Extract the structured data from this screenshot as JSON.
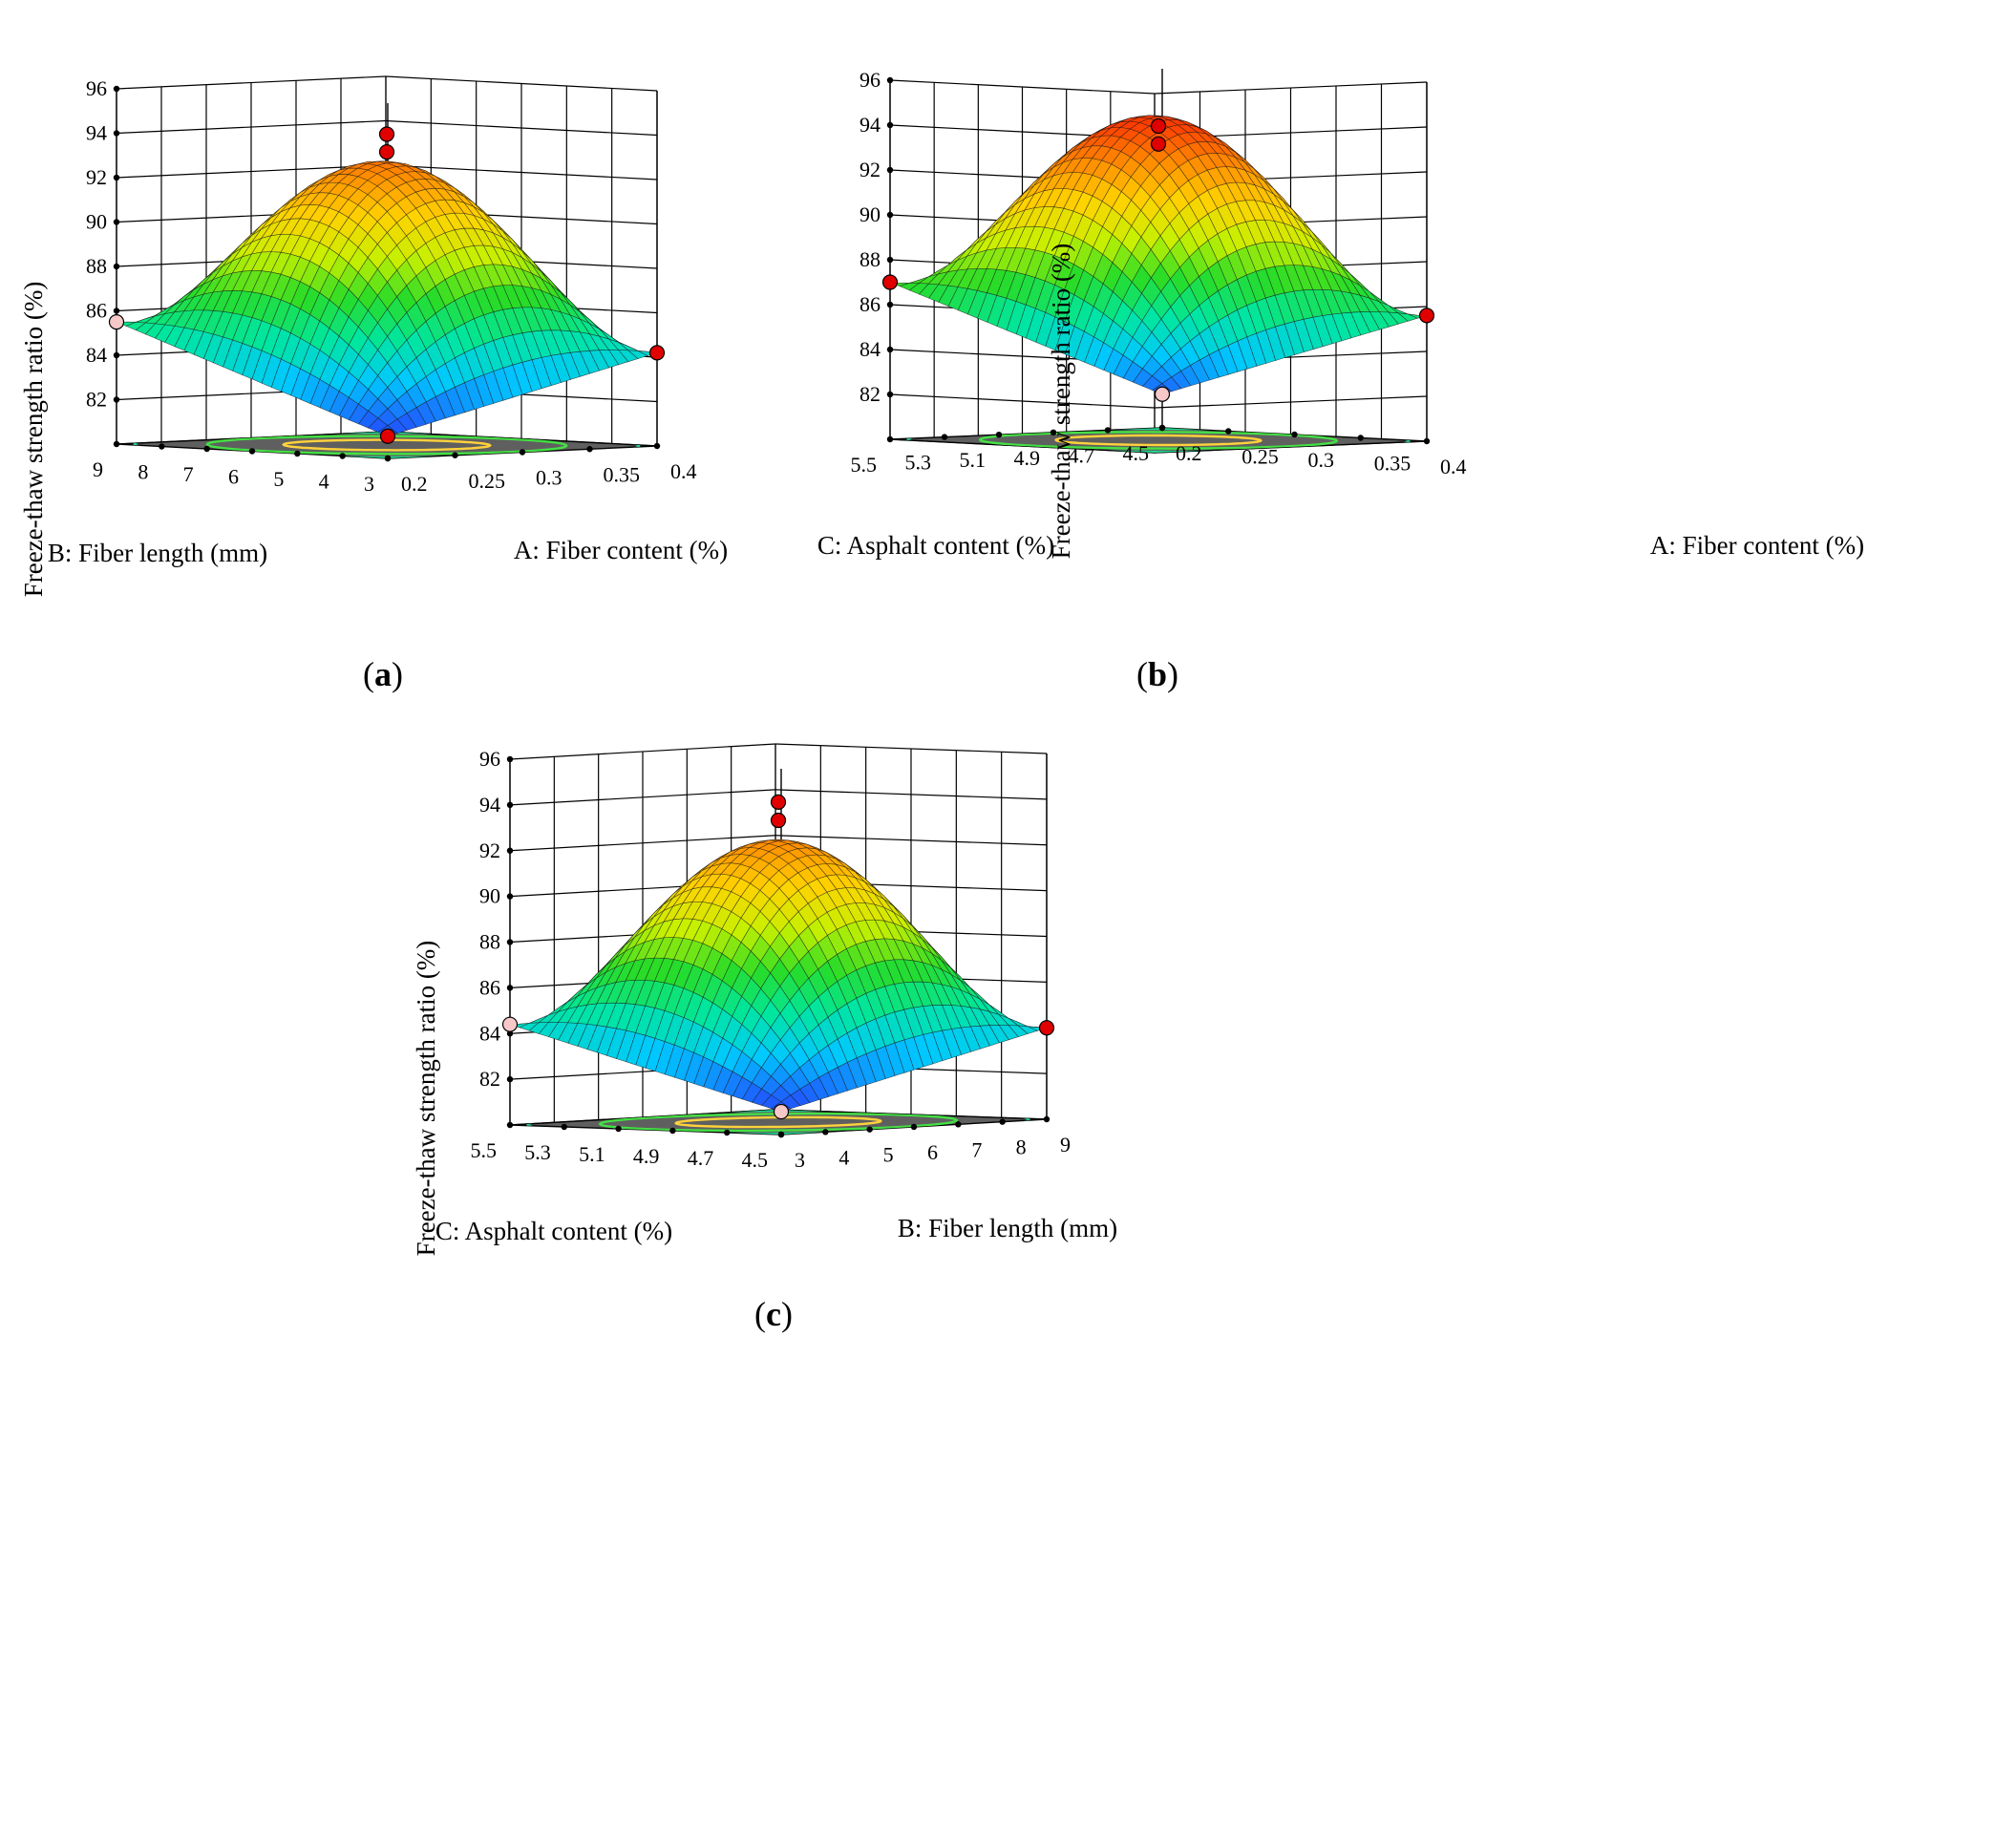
{
  "figure": {
    "panels": [
      {
        "label_open": "(",
        "label_letter": "a",
        "label_close": ")",
        "chart_data": {
          "type": "surface",
          "z_label": "Freeze-thaw strength ratio (%)",
          "z_ticks": [
            "82",
            "84",
            "86",
            "88",
            "90",
            "92",
            "94",
            "96"
          ],
          "zlim": [
            80,
            96
          ],
          "x_label": "A: Fiber content (%)",
          "x_ticks": [
            "0.2",
            "0.25",
            "0.3",
            "0.35",
            "0.4"
          ],
          "xlim": [
            0.2,
            0.4
          ],
          "y_label": "B: Fiber length (mm)",
          "y_ticks": [
            "3",
            "4",
            "5",
            "6",
            "7",
            "8",
            "9"
          ],
          "ylim": [
            3,
            9
          ],
          "surface": {
            "peak": 93.3,
            "x_min_y_min": 81.0,
            "x_max_y_min": 84.2,
            "x_min_y_max": 85.5,
            "x_max_y_max": 84.9
          },
          "design_points": [
            {
              "x": 0.3,
              "y": 6,
              "z": 94.0,
              "above_surface": true
            },
            {
              "x": 0.3,
              "y": 6,
              "z": 93.2,
              "above_surface": true
            },
            {
              "x": 0.2,
              "y": 3,
              "z": 81.0,
              "above_surface": true
            },
            {
              "x": 0.4,
              "y": 3,
              "z": 84.2,
              "above_surface": true
            },
            {
              "x": 0.2,
              "y": 9,
              "z": 85.5,
              "above_surface": false
            }
          ],
          "colormap": [
            "#1e5cff",
            "#00c8ff",
            "#00e6a0",
            "#28dc28",
            "#c8f000",
            "#ffd200",
            "#ff8c00",
            "#ff3c00"
          ]
        }
      },
      {
        "label_open": "(",
        "label_letter": "b",
        "label_close": ")",
        "chart_data": {
          "type": "surface",
          "z_label": "Freeze-thaw strength ratio (%)",
          "z_ticks": [
            "82",
            "84",
            "86",
            "88",
            "90",
            "92",
            "94",
            "96"
          ],
          "zlim": [
            80,
            96
          ],
          "x_label": "A: Fiber content (%)",
          "x_ticks": [
            "0.2",
            "0.25",
            "0.3",
            "0.35",
            "0.4"
          ],
          "xlim": [
            0.2,
            0.4
          ],
          "y_label": "C: Asphalt content (%)",
          "y_ticks": [
            "4.5",
            "4.7",
            "4.9",
            "5.1",
            "5.3",
            "5.5"
          ],
          "ylim": [
            4.5,
            5.5
          ],
          "surface": {
            "peak": 93.8,
            "x_min_y_min": 81.5,
            "x_max_y_min": 85.6,
            "x_min_y_max": 87.0,
            "x_max_y_max": 86.4
          },
          "design_points": [
            {
              "x": 0.3,
              "y": 5.0,
              "z": 94.0,
              "above_surface": true
            },
            {
              "x": 0.3,
              "y": 5.0,
              "z": 93.2,
              "above_surface": true
            },
            {
              "x": 0.2,
              "y": 4.5,
              "z": 81.5,
              "above_surface": false
            },
            {
              "x": 0.4,
              "y": 4.5,
              "z": 85.6,
              "above_surface": true
            },
            {
              "x": 0.2,
              "y": 5.5,
              "z": 87.0,
              "above_surface": true
            }
          ],
          "colormap": [
            "#1e5cff",
            "#00c8ff",
            "#00e6a0",
            "#28dc28",
            "#c8f000",
            "#ffd200",
            "#ff8c00",
            "#ff3c00"
          ]
        }
      },
      {
        "label_open": "(",
        "label_letter": "c",
        "label_close": ")",
        "chart_data": {
          "type": "surface",
          "z_label": "Freeze-thaw strength ratio (%)",
          "z_ticks": [
            "82",
            "84",
            "86",
            "88",
            "90",
            "92",
            "94",
            "96"
          ],
          "zlim": [
            80,
            96
          ],
          "x_label": "B: Fiber length (mm)",
          "x_ticks": [
            "3",
            "4",
            "5",
            "6",
            "7",
            "8",
            "9"
          ],
          "xlim": [
            3,
            9
          ],
          "y_label": "C: Asphalt content (%)",
          "y_ticks": [
            "4.5",
            "4.7",
            "4.9",
            "5.1",
            "5.3",
            "5.5"
          ],
          "ylim": [
            4.5,
            5.5
          ],
          "surface": {
            "peak": 93.4,
            "x_min_y_min": 81.0,
            "x_max_y_min": 84.0,
            "x_min_y_max": 84.4,
            "x_max_y_max": 84.2
          },
          "design_points": [
            {
              "x": 6,
              "y": 5.0,
              "z": 94.0,
              "above_surface": true
            },
            {
              "x": 6,
              "y": 5.0,
              "z": 93.2,
              "above_surface": true
            },
            {
              "x": 3,
              "y": 4.5,
              "z": 81.0,
              "above_surface": false
            },
            {
              "x": 9,
              "y": 4.5,
              "z": 84.0,
              "above_surface": true
            },
            {
              "x": 3,
              "y": 5.5,
              "z": 84.4,
              "above_surface": false
            }
          ],
          "colormap": [
            "#1e5cff",
            "#00c8ff",
            "#00e6a0",
            "#28dc28",
            "#c8f000",
            "#ffd200",
            "#ff8c00",
            "#ff3c00"
          ]
        }
      }
    ]
  }
}
